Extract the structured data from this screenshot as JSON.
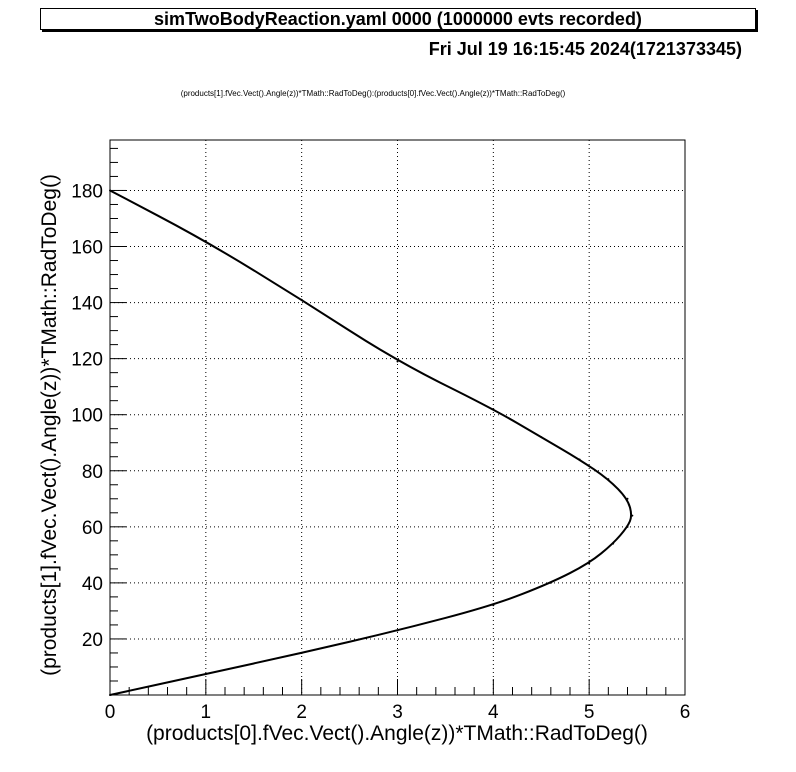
{
  "header": {
    "title": "simTwoBodyReaction.yaml  0000 (1000000 evts recorded)",
    "date": "Fri Jul 19 16:15:45 2024(1721373345)",
    "expression": "(products[1].fVec.Vect().Angle(z))*TMath::RadToDeg():(products[0].fVec.Vect().Angle(z))*TMath::RadToDeg()"
  },
  "chart_data": {
    "type": "scatter",
    "xlabel": "(products[0].fVec.Vect().Angle(z))*TMath::RadToDeg()",
    "ylabel": "(products[1].fVec.Vect().Angle(z))*TMath::RadToDeg()",
    "xlim": [
      0,
      6
    ],
    "ylim": [
      0,
      198
    ],
    "x_ticks": [
      0,
      1,
      2,
      3,
      4,
      5,
      6
    ],
    "y_ticks": [
      20,
      40,
      60,
      80,
      100,
      120,
      140,
      160,
      180
    ],
    "grid": true,
    "legend": "none",
    "series": [
      {
        "color": "#000000",
        "points": [
          [
            0.0,
            0
          ],
          [
            1.0,
            7.5
          ],
          [
            2.0,
            15
          ],
          [
            3.0,
            23
          ],
          [
            4.0,
            32
          ],
          [
            4.6,
            40
          ],
          [
            5.0,
            47
          ],
          [
            5.25,
            54
          ],
          [
            5.4,
            60
          ],
          [
            5.45,
            64
          ],
          [
            5.4,
            70
          ],
          [
            5.2,
            77
          ],
          [
            4.9,
            84
          ],
          [
            4.5,
            92
          ],
          [
            4.0,
            102
          ],
          [
            3.0,
            119
          ],
          [
            2.0,
            141
          ],
          [
            1.0,
            162
          ],
          [
            0.0,
            180
          ]
        ]
      }
    ]
  }
}
